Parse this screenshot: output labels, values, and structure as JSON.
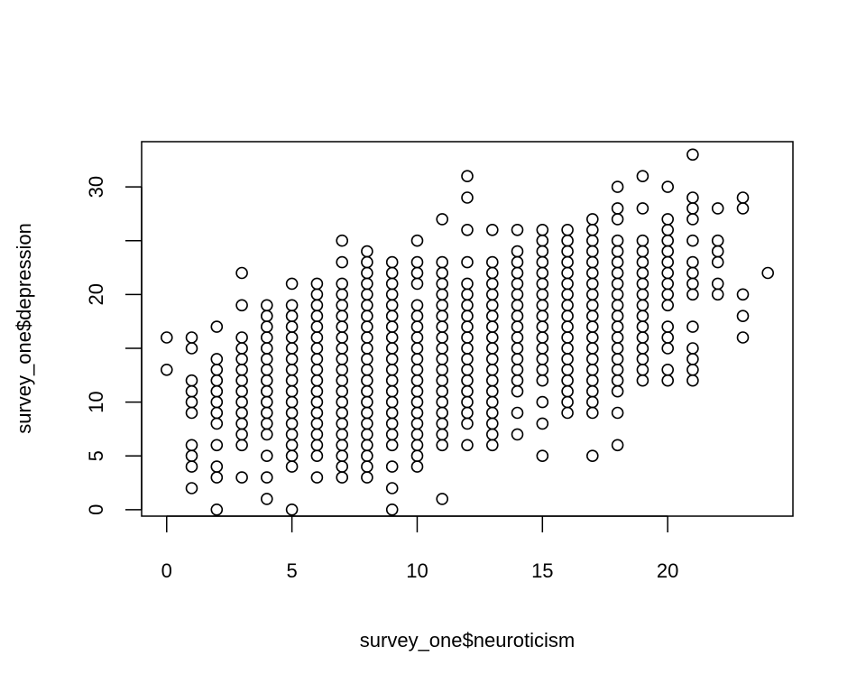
{
  "chart_data": {
    "type": "scatter",
    "title": "",
    "xlabel": "survey_one$neuroticism",
    "ylabel": "survey_one$depression",
    "xlim": [
      -1,
      25
    ],
    "ylim": [
      -0.6,
      34.2
    ],
    "x_ticks": [
      0,
      5,
      10,
      15,
      20
    ],
    "x_tick_labels": [
      "0",
      "5",
      "10",
      "15",
      "20"
    ],
    "y_ticks": [
      0,
      5,
      10,
      15,
      20,
      25,
      30
    ],
    "y_tick_labels": [
      "0",
      "5",
      "10",
      "",
      "20",
      "",
      "30"
    ],
    "grid": false,
    "marker": "open-circle",
    "marker_color": "#000000",
    "columns": [
      {
        "x": 0,
        "y": [
          13,
          16
        ]
      },
      {
        "x": 1,
        "y": [
          2,
          4,
          5,
          6,
          9,
          10,
          11,
          12,
          15,
          16
        ]
      },
      {
        "x": 2,
        "y": [
          0,
          3,
          4,
          6,
          8,
          9,
          10,
          11,
          12,
          13,
          14,
          17
        ]
      },
      {
        "x": 3,
        "y": [
          3,
          6,
          7,
          8,
          9,
          10,
          11,
          12,
          13,
          14,
          15,
          16,
          19,
          22
        ]
      },
      {
        "x": 4,
        "y": [
          1,
          3,
          5,
          7,
          8,
          9,
          10,
          11,
          12,
          13,
          14,
          15,
          16,
          17,
          18,
          19
        ]
      },
      {
        "x": 5,
        "y": [
          0,
          4,
          5,
          6,
          7,
          8,
          9,
          10,
          11,
          12,
          13,
          14,
          15,
          16,
          17,
          18,
          19,
          21
        ]
      },
      {
        "x": 6,
        "y": [
          3,
          5,
          6,
          7,
          8,
          9,
          10,
          11,
          12,
          13,
          14,
          15,
          16,
          17,
          18,
          19,
          20,
          21
        ]
      },
      {
        "x": 7,
        "y": [
          3,
          4,
          5,
          6,
          7,
          8,
          9,
          10,
          11,
          12,
          13,
          14,
          15,
          16,
          17,
          18,
          19,
          20,
          21,
          23,
          25
        ]
      },
      {
        "x": 8,
        "y": [
          3,
          4,
          5,
          6,
          7,
          8,
          9,
          10,
          11,
          12,
          13,
          14,
          15,
          16,
          17,
          18,
          19,
          20,
          21,
          22,
          23,
          24
        ]
      },
      {
        "x": 9,
        "y": [
          0,
          2,
          4,
          6,
          7,
          8,
          9,
          10,
          11,
          12,
          13,
          14,
          15,
          16,
          17,
          18,
          19,
          20,
          21,
          22,
          23
        ]
      },
      {
        "x": 10,
        "y": [
          4,
          5,
          6,
          7,
          8,
          9,
          10,
          11,
          12,
          13,
          14,
          15,
          16,
          17,
          18,
          19,
          21,
          22,
          23,
          25
        ]
      },
      {
        "x": 11,
        "y": [
          1,
          6,
          7,
          8,
          9,
          10,
          11,
          12,
          13,
          14,
          15,
          16,
          17,
          18,
          19,
          20,
          21,
          22,
          23,
          27
        ]
      },
      {
        "x": 12,
        "y": [
          6,
          8,
          9,
          10,
          11,
          12,
          13,
          14,
          15,
          16,
          17,
          18,
          19,
          20,
          21,
          23,
          26,
          29,
          31
        ]
      },
      {
        "x": 13,
        "y": [
          6,
          7,
          8,
          9,
          10,
          11,
          12,
          13,
          14,
          15,
          16,
          17,
          18,
          19,
          20,
          21,
          22,
          23,
          26
        ]
      },
      {
        "x": 14,
        "y": [
          7,
          9,
          11,
          12,
          13,
          14,
          15,
          16,
          17,
          18,
          19,
          20,
          21,
          22,
          23,
          24,
          26
        ]
      },
      {
        "x": 15,
        "y": [
          5,
          8,
          10,
          12,
          13,
          14,
          15,
          16,
          17,
          18,
          19,
          20,
          21,
          22,
          23,
          24,
          25,
          26
        ]
      },
      {
        "x": 16,
        "y": [
          9,
          10,
          11,
          12,
          13,
          14,
          15,
          16,
          17,
          18,
          19,
          20,
          21,
          22,
          23,
          24,
          25,
          26
        ]
      },
      {
        "x": 17,
        "y": [
          5,
          9,
          10,
          11,
          12,
          13,
          14,
          15,
          16,
          17,
          18,
          19,
          20,
          21,
          22,
          23,
          24,
          25,
          26,
          27
        ]
      },
      {
        "x": 18,
        "y": [
          6,
          9,
          11,
          12,
          13,
          14,
          15,
          16,
          17,
          18,
          19,
          20,
          21,
          22,
          23,
          24,
          25,
          27,
          28,
          30
        ]
      },
      {
        "x": 19,
        "y": [
          12,
          13,
          14,
          15,
          16,
          17,
          18,
          19,
          20,
          21,
          22,
          23,
          24,
          25,
          28,
          31
        ]
      },
      {
        "x": 20,
        "y": [
          12,
          13,
          15,
          16,
          17,
          19,
          20,
          21,
          22,
          23,
          24,
          25,
          26,
          27,
          30
        ]
      },
      {
        "x": 21,
        "y": [
          12,
          13,
          14,
          15,
          17,
          20,
          21,
          22,
          23,
          25,
          27,
          28,
          29,
          33
        ]
      },
      {
        "x": 22,
        "y": [
          20,
          21,
          23,
          24,
          25,
          28
        ]
      },
      {
        "x": 23,
        "y": [
          16,
          18,
          20,
          28,
          29
        ]
      },
      {
        "x": 24,
        "y": [
          22
        ]
      }
    ]
  }
}
